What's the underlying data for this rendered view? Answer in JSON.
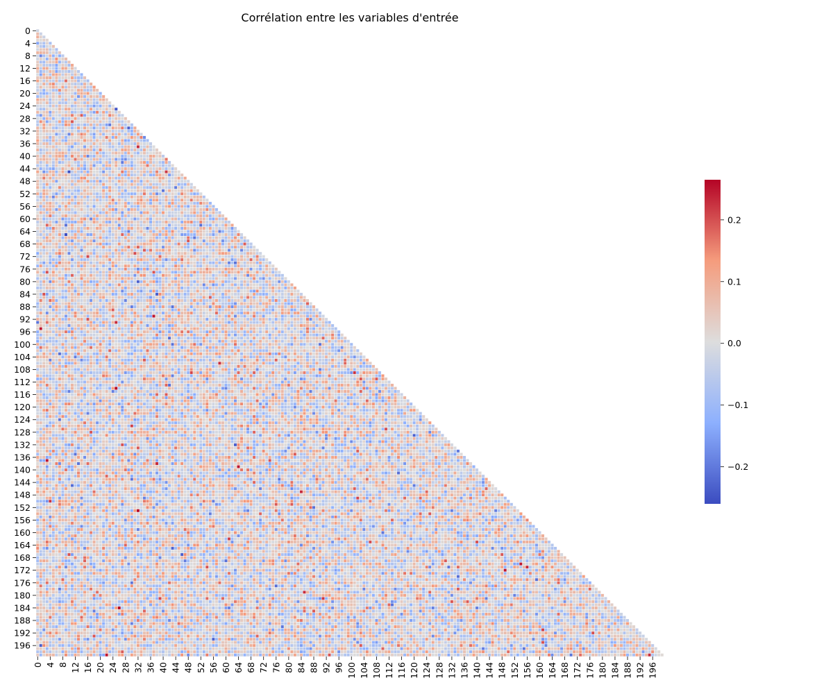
{
  "chart_data": {
    "type": "heatmap",
    "title": "Corrélation entre les variables d'entrée",
    "matrix_size": 200,
    "mask": "upper-triangle",
    "x_ticks": [
      0,
      4,
      8,
      12,
      16,
      20,
      24,
      28,
      32,
      36,
      40,
      44,
      48,
      52,
      56,
      60,
      64,
      68,
      72,
      76,
      80,
      84,
      88,
      92,
      96,
      100,
      104,
      108,
      112,
      116,
      120,
      124,
      128,
      132,
      136,
      140,
      144,
      148,
      152,
      156,
      160,
      164,
      168,
      172,
      176,
      180,
      184,
      188,
      192,
      196
    ],
    "y_ticks": [
      0,
      4,
      8,
      12,
      16,
      20,
      24,
      28,
      32,
      36,
      40,
      44,
      48,
      52,
      56,
      60,
      64,
      68,
      72,
      76,
      80,
      84,
      88,
      92,
      96,
      100,
      104,
      108,
      112,
      116,
      120,
      124,
      128,
      132,
      136,
      140,
      144,
      148,
      152,
      156,
      160,
      164,
      168,
      172,
      176,
      180,
      184,
      188,
      192,
      196
    ],
    "colormap": "coolwarm",
    "colormap_low": "#3b4cc0",
    "colormap_mid": "#dddddd",
    "colormap_high": "#b40426",
    "vmin": -0.26,
    "vmax": 0.265,
    "colorbar_ticks": [
      "0.2",
      "0.1",
      "0.0",
      "−0.1",
      "−0.2"
    ],
    "colorbar_tick_values": [
      0.2,
      0.1,
      0.0,
      -0.1,
      -0.2
    ],
    "cell_border_color": "#ffffff",
    "value_distribution": "off-diagonal values approximately normal, centered near 0.0, range -0.26 to 0.265"
  }
}
